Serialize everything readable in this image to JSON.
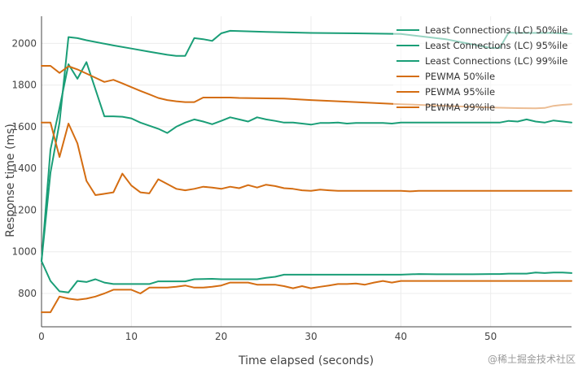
{
  "chart_data": {
    "type": "line",
    "xlabel": "Time elapsed (seconds)",
    "ylabel": "Response time (ms)",
    "xlim": [
      0,
      59
    ],
    "ylim": [
      640,
      2130
    ],
    "x_ticks": [
      0,
      10,
      20,
      30,
      40,
      50
    ],
    "y_ticks": [
      800,
      1000,
      1200,
      1400,
      1600,
      1800,
      2000
    ],
    "grid": true,
    "legend_position": "top-right",
    "colors": {
      "lc": "#1a9e77",
      "pewma": "#d46d12"
    },
    "series": [
      {
        "name": "Least Connections (LC) 50%ile",
        "color": "#1a9e77",
        "x": [
          0,
          1,
          2,
          3,
          4,
          5,
          6,
          7,
          8,
          10,
          11,
          12,
          13,
          14,
          16,
          17,
          19,
          20,
          21,
          22,
          23,
          24,
          25,
          26,
          27,
          28,
          30,
          31,
          32,
          34,
          36,
          38,
          40,
          42,
          44,
          46,
          48,
          50,
          51,
          52,
          54,
          55,
          56,
          57,
          58,
          59
        ],
        "y": [
          955,
          860,
          810,
          805,
          860,
          855,
          868,
          852,
          845,
          845,
          845,
          845,
          858,
          858,
          858,
          868,
          870,
          868,
          868,
          868,
          868,
          868,
          875,
          880,
          890,
          890,
          890,
          890,
          890,
          890,
          890,
          890,
          890,
          893,
          892,
          892,
          892,
          893,
          893,
          895,
          895,
          900,
          898,
          900,
          900,
          898
        ]
      },
      {
        "name": "Least Connections (LC) 95%ile",
        "color": "#1a9e77",
        "x": [
          0,
          1,
          2,
          3,
          4,
          5,
          7,
          8,
          9,
          10,
          11,
          13,
          14,
          15,
          16,
          17,
          18,
          19,
          20,
          21,
          22,
          23,
          24,
          25,
          26,
          27,
          28,
          29,
          30,
          31,
          32,
          33,
          34,
          35,
          36,
          37,
          38,
          39,
          40,
          42,
          44,
          46,
          48,
          50,
          51,
          52,
          53,
          54,
          55,
          56,
          57,
          58,
          59
        ],
        "y": [
          955,
          1490,
          1690,
          1900,
          1830,
          1910,
          1650,
          1650,
          1648,
          1640,
          1620,
          1590,
          1570,
          1600,
          1620,
          1635,
          1625,
          1612,
          1628,
          1645,
          1635,
          1625,
          1645,
          1635,
          1628,
          1620,
          1620,
          1615,
          1610,
          1618,
          1618,
          1620,
          1615,
          1618,
          1618,
          1618,
          1618,
          1615,
          1620,
          1620,
          1620,
          1620,
          1620,
          1620,
          1620,
          1628,
          1625,
          1635,
          1625,
          1620,
          1630,
          1625,
          1620
        ]
      },
      {
        "name": "Least Connections (LC) 99%ile",
        "color": "#1a9e77",
        "x": [
          0,
          1,
          2,
          3,
          4,
          5,
          8,
          10,
          12,
          14,
          15,
          16,
          17,
          18,
          19,
          20,
          21,
          25,
          30,
          35,
          40,
          45,
          50,
          51,
          52,
          53,
          55,
          57,
          59
        ],
        "y": [
          955,
          1380,
          1620,
          2030,
          2025,
          2015,
          1990,
          1975,
          1960,
          1945,
          1940,
          1940,
          2025,
          2020,
          2012,
          2048,
          2060,
          2055,
          2050,
          2048,
          2045,
          2020,
          1978,
          1978,
          2052,
          2050,
          2050,
          2050,
          2045
        ]
      },
      {
        "name": "PEWMA 50%ile",
        "color": "#d46d12",
        "x": [
          0,
          1,
          2,
          3,
          4,
          5,
          6,
          7,
          8,
          9,
          10,
          11,
          12,
          13,
          14,
          15,
          16,
          17,
          18,
          19,
          20,
          21,
          22,
          23,
          24,
          25,
          26,
          27,
          28,
          29,
          30,
          31,
          32,
          33,
          34,
          35,
          36,
          37,
          38,
          39,
          40,
          41,
          42,
          44,
          46,
          48,
          50,
          52,
          54,
          56,
          58,
          59
        ],
        "y": [
          710,
          710,
          785,
          775,
          770,
          775,
          785,
          800,
          818,
          818,
          818,
          800,
          828,
          828,
          828,
          832,
          838,
          828,
          828,
          832,
          838,
          852,
          852,
          852,
          842,
          842,
          842,
          835,
          825,
          835,
          825,
          832,
          838,
          845,
          845,
          848,
          842,
          852,
          860,
          852,
          860,
          860,
          860,
          860,
          860,
          860,
          860,
          860,
          860,
          860,
          860,
          860
        ]
      },
      {
        "name": "PEWMA 95%ile",
        "color": "#d46d12",
        "x": [
          0,
          1,
          2,
          3,
          4,
          5,
          6,
          7,
          8,
          9,
          10,
          11,
          12,
          13,
          14,
          15,
          16,
          17,
          18,
          19,
          20,
          21,
          22,
          23,
          24,
          25,
          26,
          27,
          28,
          29,
          30,
          31,
          32,
          33,
          34,
          35,
          36,
          37,
          38,
          39,
          40,
          41,
          42,
          44,
          46,
          48,
          50,
          52,
          54,
          56,
          58,
          59
        ],
        "y": [
          1620,
          1620,
          1455,
          1615,
          1520,
          1340,
          1272,
          1278,
          1285,
          1375,
          1318,
          1285,
          1280,
          1348,
          1325,
          1302,
          1295,
          1302,
          1312,
          1308,
          1302,
          1312,
          1305,
          1320,
          1308,
          1322,
          1315,
          1305,
          1302,
          1295,
          1292,
          1298,
          1295,
          1292,
          1292,
          1292,
          1292,
          1292,
          1292,
          1292,
          1292,
          1290,
          1292,
          1292,
          1292,
          1292,
          1292,
          1292,
          1292,
          1292,
          1292,
          1292
        ]
      },
      {
        "name": "PEWMA 99%ile",
        "color": "#d46d12",
        "x": [
          0,
          1,
          2,
          3,
          4,
          5,
          6,
          7,
          8,
          9,
          10,
          11,
          12,
          13,
          14,
          15,
          16,
          17,
          18,
          19,
          20,
          21,
          22,
          25,
          27,
          30,
          35,
          40,
          45,
          50,
          52,
          55,
          56,
          57,
          58,
          59
        ],
        "y": [
          1892,
          1892,
          1858,
          1890,
          1875,
          1855,
          1835,
          1815,
          1825,
          1808,
          1790,
          1772,
          1755,
          1738,
          1728,
          1722,
          1718,
          1718,
          1740,
          1740,
          1740,
          1740,
          1738,
          1736,
          1735,
          1728,
          1718,
          1708,
          1700,
          1692,
          1690,
          1688,
          1690,
          1700,
          1705,
          1708
        ]
      }
    ]
  },
  "watermark": "@稀土掘金技术社区"
}
